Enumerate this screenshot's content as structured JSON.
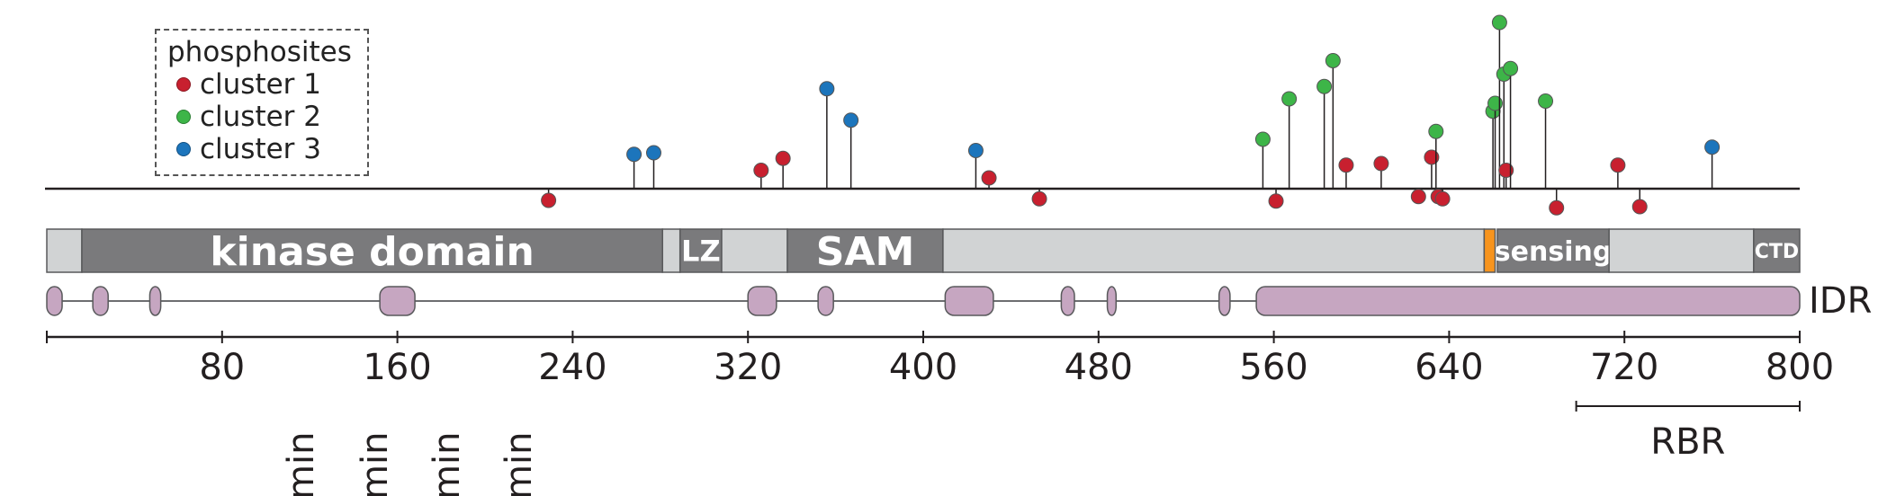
{
  "legend": {
    "title": "phosphosites",
    "items": [
      {
        "label": "cluster 1",
        "color": "#C8202F"
      },
      {
        "label": "cluster 2",
        "color": "#3DB548"
      },
      {
        "label": "cluster 3",
        "color": "#1C75BC"
      }
    ]
  },
  "colors": {
    "domain_dark": "#7A7A7C",
    "domain_light": "#D1D3D4",
    "idr_fill": "#C6A6C1",
    "marker": "#F7941D",
    "line": "#231F20"
  },
  "protein_length": 800,
  "domains": [
    {
      "name": "N-term",
      "label": "",
      "start": 0,
      "end": 16,
      "style": "light"
    },
    {
      "name": "kinase-domain",
      "label": "kinase domain",
      "start": 16,
      "end": 281,
      "style": "dark"
    },
    {
      "name": "gap-1",
      "label": "",
      "start": 281,
      "end": 289,
      "style": "light"
    },
    {
      "name": "lz",
      "label": "LZ",
      "start": 289,
      "end": 308,
      "style": "dark"
    },
    {
      "name": "gap-2",
      "label": "",
      "start": 308,
      "end": 338,
      "style": "light"
    },
    {
      "name": "sam",
      "label": "SAM",
      "start": 338,
      "end": 409,
      "style": "dark"
    },
    {
      "name": "linker",
      "label": "",
      "start": 409,
      "end": 656,
      "style": "light"
    },
    {
      "name": "orange-mark",
      "label": "",
      "start": 656,
      "end": 661,
      "style": "mark"
    },
    {
      "name": "sensing",
      "label": "sensing",
      "start": 662,
      "end": 713,
      "style": "dark"
    },
    {
      "name": "gap-3",
      "label": "",
      "start": 713,
      "end": 779,
      "style": "light"
    },
    {
      "name": "ctd",
      "label": "CTD",
      "start": 779,
      "end": 800,
      "style": "dark"
    }
  ],
  "idr": {
    "label": "IDR",
    "segments": [
      [
        0,
        7
      ],
      [
        21,
        28
      ],
      [
        47,
        52
      ],
      [
        152,
        168
      ],
      [
        320,
        333
      ],
      [
        352,
        359
      ],
      [
        410,
        432
      ],
      [
        463,
        469
      ],
      [
        484,
        488
      ],
      [
        535,
        540
      ],
      [
        552,
        800
      ]
    ]
  },
  "axis": {
    "ticks": [
      80,
      160,
      240,
      320,
      400,
      480,
      560,
      640,
      720,
      800
    ]
  },
  "rbr": {
    "label": "RBR",
    "start": 698,
    "end": 800
  },
  "phosphosites": [
    {
      "pos": 229,
      "cluster": 1,
      "level": -0.52
    },
    {
      "pos": 268,
      "cluster": 3,
      "level": 1.53
    },
    {
      "pos": 277,
      "cluster": 3,
      "level": 1.6
    },
    {
      "pos": 326,
      "cluster": 1,
      "level": 0.82
    },
    {
      "pos": 336,
      "cluster": 1,
      "level": 1.35
    },
    {
      "pos": 356,
      "cluster": 3,
      "level": 4.45
    },
    {
      "pos": 367,
      "cluster": 3,
      "level": 3.05
    },
    {
      "pos": 424,
      "cluster": 3,
      "level": 1.7
    },
    {
      "pos": 430,
      "cluster": 1,
      "level": 0.48
    },
    {
      "pos": 453,
      "cluster": 1,
      "level": -0.45
    },
    {
      "pos": 555,
      "cluster": 2,
      "level": 2.2
    },
    {
      "pos": 561,
      "cluster": 1,
      "level": -0.55
    },
    {
      "pos": 567,
      "cluster": 2,
      "level": 4.0
    },
    {
      "pos": 583,
      "cluster": 2,
      "level": 4.55
    },
    {
      "pos": 587,
      "cluster": 2,
      "level": 5.7
    },
    {
      "pos": 593,
      "cluster": 1,
      "level": 1.05
    },
    {
      "pos": 609,
      "cluster": 1,
      "level": 1.12
    },
    {
      "pos": 626,
      "cluster": 1,
      "level": -0.35
    },
    {
      "pos": 632,
      "cluster": 1,
      "level": 1.4
    },
    {
      "pos": 634,
      "cluster": 2,
      "level": 2.55
    },
    {
      "pos": 635,
      "cluster": 1,
      "level": -0.35
    },
    {
      "pos": 637,
      "cluster": 1,
      "level": -0.45
    },
    {
      "pos": 660,
      "cluster": 2,
      "level": 3.45
    },
    {
      "pos": 661,
      "cluster": 2,
      "level": 3.8
    },
    {
      "pos": 663,
      "cluster": 2,
      "level": 7.4
    },
    {
      "pos": 665,
      "cluster": 2,
      "level": 5.1
    },
    {
      "pos": 666,
      "cluster": 1,
      "level": 0.82
    },
    {
      "pos": 668,
      "cluster": 2,
      "level": 5.35
    },
    {
      "pos": 684,
      "cluster": 2,
      "level": 3.9
    },
    {
      "pos": 689,
      "cluster": 1,
      "level": -0.85
    },
    {
      "pos": 717,
      "cluster": 1,
      "level": 1.05
    },
    {
      "pos": 727,
      "cluster": 1,
      "level": -0.8
    },
    {
      "pos": 760,
      "cluster": 3,
      "level": 1.85
    }
  ],
  "bottom_labels": [
    "min",
    "min",
    "min",
    "min"
  ]
}
